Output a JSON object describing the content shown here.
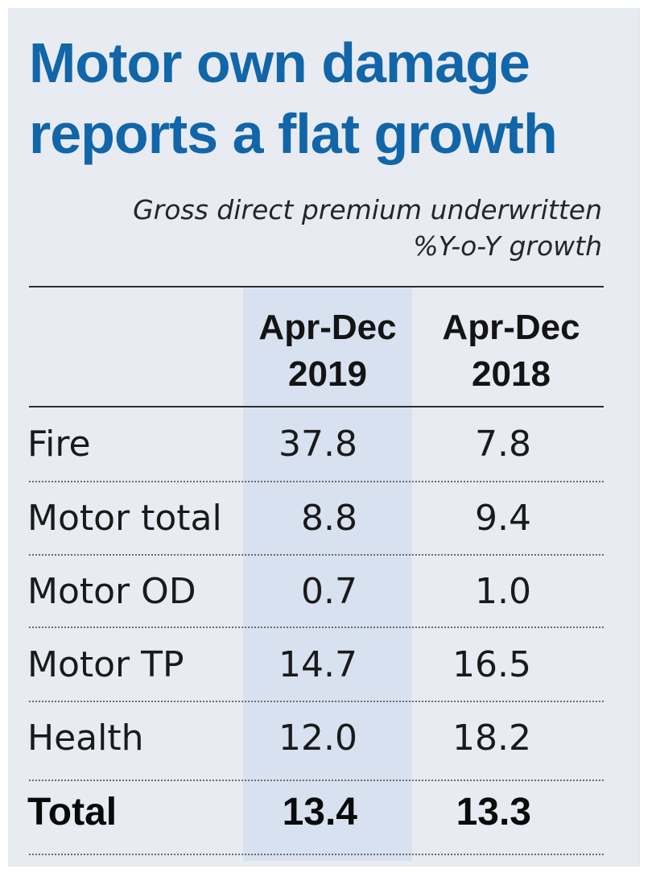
{
  "title": "Motor own damage reports a flat growth",
  "subtitle_line1": "Gross direct premium underwritten",
  "subtitle_line2": "%Y-o-Y growth",
  "colors": {
    "title": "#1066a8",
    "panel_background": "#e9ebf3",
    "highlight_column": "#d8e1ef",
    "text": "#1a1a1a"
  },
  "chart_data": {
    "type": "table",
    "title": "Motor own damage reports a flat growth",
    "subtitle": "Gross direct premium underwritten %Y-o-Y growth",
    "columns": [
      {
        "line1": "Apr-Dec",
        "line2": "2019"
      },
      {
        "line1": "Apr-Dec",
        "line2": "2018"
      }
    ],
    "rows": [
      {
        "label": "Fire",
        "values": [
          "37.8",
          "7.8"
        ]
      },
      {
        "label": "Motor total",
        "values": [
          "8.8",
          "9.4"
        ]
      },
      {
        "label": "Motor OD",
        "values": [
          "0.7",
          "1.0"
        ]
      },
      {
        "label": "Motor TP",
        "values": [
          "14.7",
          "16.5"
        ]
      },
      {
        "label": "Health",
        "values": [
          "12.0",
          "18.2"
        ]
      },
      {
        "label": "Total",
        "values": [
          "13.4",
          "13.3"
        ]
      }
    ],
    "highlighted_column": "Apr-Dec 2019"
  }
}
